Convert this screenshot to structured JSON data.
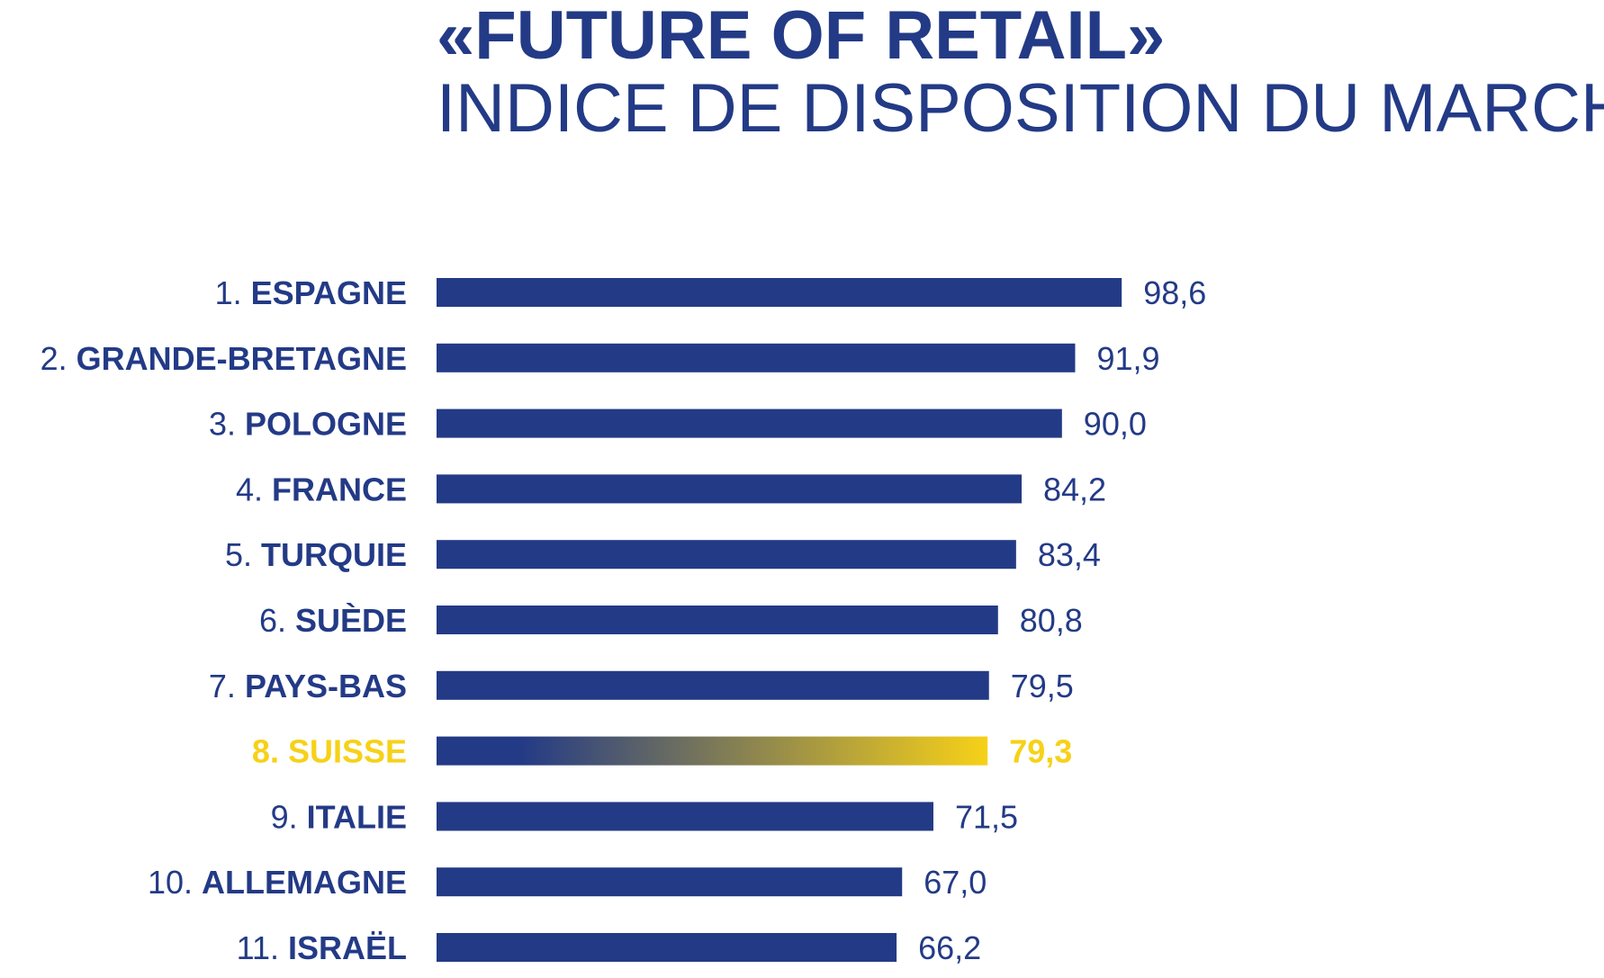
{
  "chart_data": {
    "type": "bar",
    "orientation": "horizontal",
    "title": "«FUTURE OF RETAIL»",
    "subtitle": "INDICE DE DISPOSITION DU MARCHÉ",
    "xlim": [
      0,
      100
    ],
    "grid": false,
    "legend": "none",
    "categories": [
      {
        "rank": "1.",
        "name": "ESPAGNE",
        "value": 98.6,
        "value_label": "98,6",
        "highlight": false
      },
      {
        "rank": "2.",
        "name": "GRANDE-BRETAGNE",
        "value": 91.9,
        "value_label": "91,9",
        "highlight": false
      },
      {
        "rank": "3.",
        "name": "POLOGNE",
        "value": 90.0,
        "value_label": "90,0",
        "highlight": false
      },
      {
        "rank": "4.",
        "name": "FRANCE",
        "value": 84.2,
        "value_label": "84,2",
        "highlight": false
      },
      {
        "rank": "5.",
        "name": "TURQUIE",
        "value": 83.4,
        "value_label": "83,4",
        "highlight": false
      },
      {
        "rank": "6.",
        "name": "SUÈDE",
        "value": 80.8,
        "value_label": "80,8",
        "highlight": false
      },
      {
        "rank": "7.",
        "name": "PAYS-BAS",
        "value": 79.5,
        "value_label": "79,5",
        "highlight": false
      },
      {
        "rank": "8.",
        "name": "SUISSE",
        "value": 79.3,
        "value_label": "79,3",
        "highlight": true
      },
      {
        "rank": "9.",
        "name": "ITALIE",
        "value": 71.5,
        "value_label": "71,5",
        "highlight": false
      },
      {
        "rank": "10.",
        "name": "ALLEMAGNE",
        "value": 67.0,
        "value_label": "67,0",
        "highlight": false
      },
      {
        "rank": "11.",
        "name": "ISRAËL",
        "value": 66.2,
        "value_label": "66,2",
        "highlight": false
      }
    ],
    "colors": {
      "bar": "#233a86",
      "text": "#233a86",
      "highlight": "#f7d118",
      "highlight_gradient_start": "#233a86",
      "highlight_gradient_end": "#f7d118"
    }
  }
}
